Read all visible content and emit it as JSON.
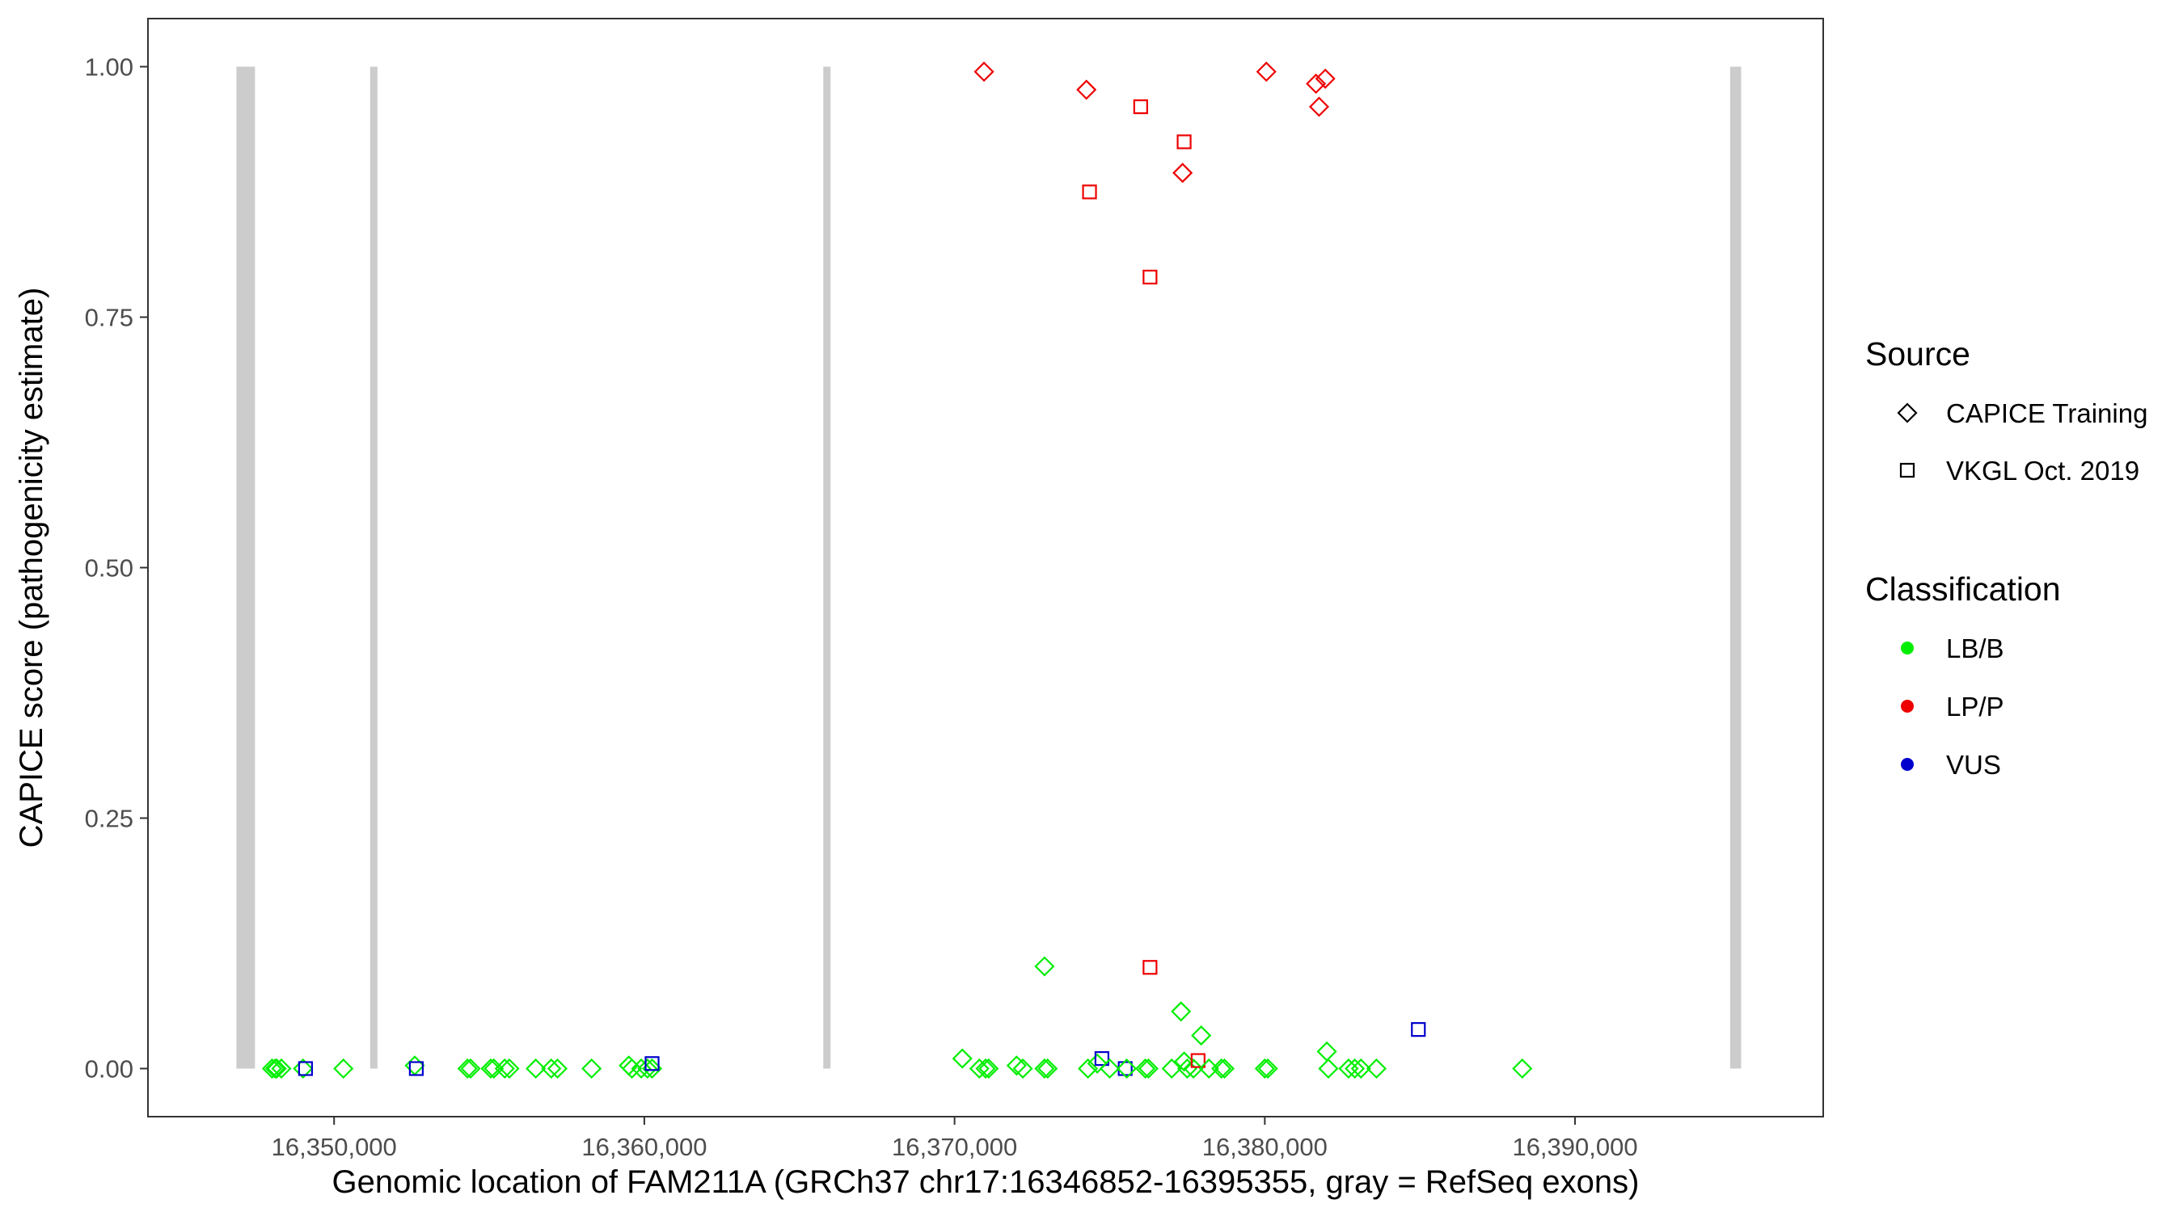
{
  "chart_data": {
    "type": "scatter",
    "xlabel": "Genomic location of FAM211A (GRCh37 chr17:16346852-16395355, gray = RefSeq exons)",
    "ylabel": "CAPICE score (pathogenicity estimate)",
    "xlim": [
      16344000,
      16398000
    ],
    "ylim": [
      -0.048,
      1.048
    ],
    "x_ticks": [
      16350000,
      16360000,
      16370000,
      16380000,
      16390000
    ],
    "x_tick_labels": [
      "16,350,000",
      "16,360,000",
      "16,370,000",
      "16,380,000",
      "16,390,000"
    ],
    "y_ticks": [
      0,
      0.25,
      0.5,
      0.75,
      1.0
    ],
    "y_tick_labels": [
      "0.00",
      "0.25",
      "0.50",
      "0.75",
      "1.00"
    ],
    "grid": false,
    "exons": [
      {
        "start": 16346852,
        "end": 16347450
      },
      {
        "start": 16351180,
        "end": 16351380
      },
      {
        "start": 16365780,
        "end": 16365990
      },
      {
        "start": 16395000,
        "end": 16395355
      }
    ],
    "legend": {
      "position": "right",
      "source": {
        "title": "Source",
        "entries": [
          {
            "label": "CAPICE Training",
            "shape": "diamond"
          },
          {
            "label": "VKGL Oct. 2019",
            "shape": "square"
          }
        ]
      },
      "classification": {
        "title": "Classification",
        "entries": [
          {
            "label": "LB/B",
            "color": "#00ee00"
          },
          {
            "label": "LP/P",
            "color": "#ee0000"
          },
          {
            "label": "VUS",
            "color": "#0000cc"
          }
        ]
      }
    },
    "colors": {
      "LB/B": "#00ee00",
      "LP/P": "#ee0000",
      "VUS": "#0000cc",
      "exon": "#cccccc"
    },
    "points": [
      {
        "x": 16348000,
        "y": 0.0,
        "source": "CAPICE Training",
        "class": "LB/B"
      },
      {
        "x": 16348100,
        "y": 0.0,
        "source": "CAPICE Training",
        "class": "LB/B"
      },
      {
        "x": 16348150,
        "y": 0.0,
        "source": "CAPICE Training",
        "class": "LB/B"
      },
      {
        "x": 16348300,
        "y": 0.0,
        "source": "CAPICE Training",
        "class": "LB/B"
      },
      {
        "x": 16349000,
        "y": 0.0,
        "source": "CAPICE Training",
        "class": "LB/B"
      },
      {
        "x": 16349080,
        "y": 0.0,
        "source": "VKGL Oct. 2019",
        "class": "VUS"
      },
      {
        "x": 16350300,
        "y": 0.0,
        "source": "CAPICE Training",
        "class": "LB/B"
      },
      {
        "x": 16352600,
        "y": 0.003,
        "source": "CAPICE Training",
        "class": "LB/B"
      },
      {
        "x": 16352650,
        "y": 0.0,
        "source": "VKGL Oct. 2019",
        "class": "VUS"
      },
      {
        "x": 16354300,
        "y": 0.0,
        "source": "CAPICE Training",
        "class": "LB/B"
      },
      {
        "x": 16354400,
        "y": 0.0,
        "source": "CAPICE Training",
        "class": "LB/B"
      },
      {
        "x": 16355050,
        "y": 0.0,
        "source": "CAPICE Training",
        "class": "LB/B"
      },
      {
        "x": 16355150,
        "y": 0.0,
        "source": "CAPICE Training",
        "class": "LB/B"
      },
      {
        "x": 16355500,
        "y": 0.0,
        "source": "CAPICE Training",
        "class": "LB/B"
      },
      {
        "x": 16355650,
        "y": 0.0,
        "source": "CAPICE Training",
        "class": "LB/B"
      },
      {
        "x": 16356500,
        "y": 0.0,
        "source": "CAPICE Training",
        "class": "LB/B"
      },
      {
        "x": 16357000,
        "y": 0.0,
        "source": "CAPICE Training",
        "class": "LB/B"
      },
      {
        "x": 16357200,
        "y": 0.0,
        "source": "CAPICE Training",
        "class": "LB/B"
      },
      {
        "x": 16358300,
        "y": 0.0,
        "source": "CAPICE Training",
        "class": "LB/B"
      },
      {
        "x": 16359500,
        "y": 0.003,
        "source": "CAPICE Training",
        "class": "LB/B"
      },
      {
        "x": 16359600,
        "y": 0.0,
        "source": "CAPICE Training",
        "class": "LB/B"
      },
      {
        "x": 16359900,
        "y": 0.0,
        "source": "CAPICE Training",
        "class": "LB/B"
      },
      {
        "x": 16360100,
        "y": 0.0,
        "source": "CAPICE Training",
        "class": "LB/B"
      },
      {
        "x": 16360250,
        "y": 0.0,
        "source": "CAPICE Training",
        "class": "LB/B"
      },
      {
        "x": 16360250,
        "y": 0.005,
        "source": "VKGL Oct. 2019",
        "class": "VUS"
      },
      {
        "x": 16370250,
        "y": 0.01,
        "source": "CAPICE Training",
        "class": "LB/B"
      },
      {
        "x": 16370800,
        "y": 0.0,
        "source": "CAPICE Training",
        "class": "LB/B"
      },
      {
        "x": 16370950,
        "y": 0.995,
        "source": "CAPICE Training",
        "class": "LP/P"
      },
      {
        "x": 16371000,
        "y": 0.0,
        "source": "CAPICE Training",
        "class": "LB/B"
      },
      {
        "x": 16371100,
        "y": 0.0,
        "source": "CAPICE Training",
        "class": "LB/B"
      },
      {
        "x": 16372000,
        "y": 0.003,
        "source": "CAPICE Training",
        "class": "LB/B"
      },
      {
        "x": 16372200,
        "y": 0.0,
        "source": "CAPICE Training",
        "class": "LB/B"
      },
      {
        "x": 16372900,
        "y": 0.102,
        "source": "CAPICE Training",
        "class": "LB/B"
      },
      {
        "x": 16372900,
        "y": 0.0,
        "source": "CAPICE Training",
        "class": "LB/B"
      },
      {
        "x": 16373000,
        "y": 0.0,
        "source": "CAPICE Training",
        "class": "LB/B"
      },
      {
        "x": 16374250,
        "y": 0.977,
        "source": "CAPICE Training",
        "class": "LP/P"
      },
      {
        "x": 16374350,
        "y": 0.875,
        "source": "VKGL Oct. 2019",
        "class": "LP/P"
      },
      {
        "x": 16374300,
        "y": 0.0,
        "source": "CAPICE Training",
        "class": "LB/B"
      },
      {
        "x": 16374600,
        "y": 0.005,
        "source": "CAPICE Training",
        "class": "LB/B"
      },
      {
        "x": 16374750,
        "y": 0.01,
        "source": "VKGL Oct. 2019",
        "class": "VUS"
      },
      {
        "x": 16375000,
        "y": 0.0,
        "source": "CAPICE Training",
        "class": "LB/B"
      },
      {
        "x": 16375500,
        "y": 0.0,
        "source": "VKGL Oct. 2019",
        "class": "VUS"
      },
      {
        "x": 16375550,
        "y": 0.0,
        "source": "CAPICE Training",
        "class": "LB/B"
      },
      {
        "x": 16376000,
        "y": 0.96,
        "source": "VKGL Oct. 2019",
        "class": "LP/P"
      },
      {
        "x": 16376150,
        "y": 0.0,
        "source": "CAPICE Training",
        "class": "LB/B"
      },
      {
        "x": 16376250,
        "y": 0.0,
        "source": "CAPICE Training",
        "class": "LB/B"
      },
      {
        "x": 16376300,
        "y": 0.79,
        "source": "VKGL Oct. 2019",
        "class": "LP/P"
      },
      {
        "x": 16376300,
        "y": 0.101,
        "source": "VKGL Oct. 2019",
        "class": "LP/P"
      },
      {
        "x": 16377000,
        "y": 0.0,
        "source": "CAPICE Training",
        "class": "LB/B"
      },
      {
        "x": 16377300,
        "y": 0.057,
        "source": "CAPICE Training",
        "class": "LB/B"
      },
      {
        "x": 16377350,
        "y": 0.894,
        "source": "CAPICE Training",
        "class": "LP/P"
      },
      {
        "x": 16377400,
        "y": 0.925,
        "source": "VKGL Oct. 2019",
        "class": "LP/P"
      },
      {
        "x": 16377400,
        "y": 0.007,
        "source": "CAPICE Training",
        "class": "LB/B"
      },
      {
        "x": 16377500,
        "y": 0.0,
        "source": "CAPICE Training",
        "class": "LB/B"
      },
      {
        "x": 16377700,
        "y": 0.0,
        "source": "CAPICE Training",
        "class": "LB/B"
      },
      {
        "x": 16377850,
        "y": 0.008,
        "source": "VKGL Oct. 2019",
        "class": "LP/P"
      },
      {
        "x": 16377950,
        "y": 0.033,
        "source": "CAPICE Training",
        "class": "LB/B"
      },
      {
        "x": 16378200,
        "y": 0.0,
        "source": "CAPICE Training",
        "class": "LB/B"
      },
      {
        "x": 16378600,
        "y": 0.0,
        "source": "CAPICE Training",
        "class": "LB/B"
      },
      {
        "x": 16378700,
        "y": 0.0,
        "source": "CAPICE Training",
        "class": "LB/B"
      },
      {
        "x": 16380050,
        "y": 0.995,
        "source": "CAPICE Training",
        "class": "LP/P"
      },
      {
        "x": 16380000,
        "y": 0.0,
        "source": "CAPICE Training",
        "class": "LB/B"
      },
      {
        "x": 16380100,
        "y": 0.0,
        "source": "CAPICE Training",
        "class": "LB/B"
      },
      {
        "x": 16381650,
        "y": 0.983,
        "source": "CAPICE Training",
        "class": "LP/P"
      },
      {
        "x": 16381750,
        "y": 0.96,
        "source": "CAPICE Training",
        "class": "LP/P"
      },
      {
        "x": 16381950,
        "y": 0.988,
        "source": "CAPICE Training",
        "class": "LP/P"
      },
      {
        "x": 16382000,
        "y": 0.017,
        "source": "CAPICE Training",
        "class": "LB/B"
      },
      {
        "x": 16382050,
        "y": 0.0,
        "source": "CAPICE Training",
        "class": "LB/B"
      },
      {
        "x": 16382700,
        "y": 0.0,
        "source": "CAPICE Training",
        "class": "LB/B"
      },
      {
        "x": 16382900,
        "y": 0.0,
        "source": "CAPICE Training",
        "class": "LB/B"
      },
      {
        "x": 16383100,
        "y": 0.0,
        "source": "CAPICE Training",
        "class": "LB/B"
      },
      {
        "x": 16383600,
        "y": 0.0,
        "source": "CAPICE Training",
        "class": "LB/B"
      },
      {
        "x": 16384950,
        "y": 0.039,
        "source": "VKGL Oct. 2019",
        "class": "VUS"
      },
      {
        "x": 16388300,
        "y": 0.0,
        "source": "CAPICE Training",
        "class": "LB/B"
      }
    ]
  }
}
